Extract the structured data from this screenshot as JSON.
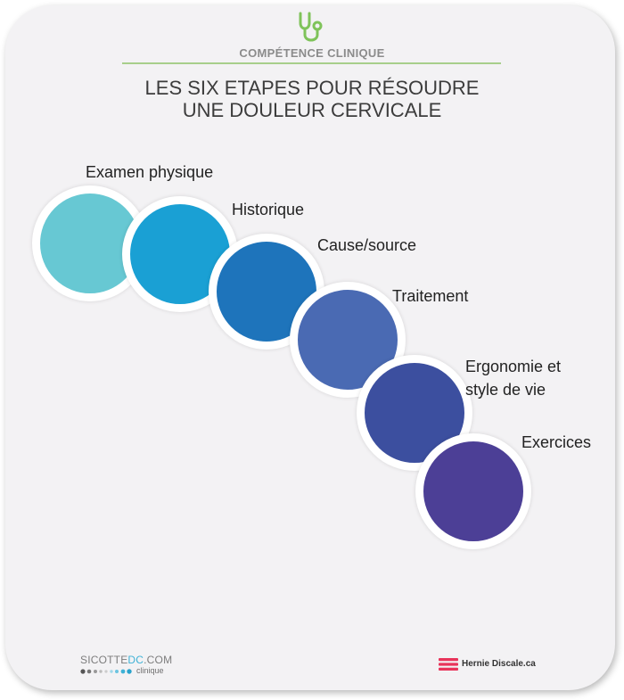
{
  "header": {
    "icon": "stethoscope-icon",
    "kicker": "COMPÉTENCE CLINIQUE",
    "title_line1": "LES SIX ETAPES POUR RÉSOUDRE",
    "title_line2": "UNE DOULEUR CERVICALE"
  },
  "steps": [
    {
      "label": "Examen physique",
      "color": "#67c8d3"
    },
    {
      "label": "Historique",
      "color": "#1aa0d4"
    },
    {
      "label": "Cause/source",
      "color": "#1e74bb"
    },
    {
      "label": "Traitement",
      "color": "#4a6ab3"
    },
    {
      "label": "Ergonomie et",
      "label2": "style de vie",
      "color": "#3c4f9f"
    },
    {
      "label": "Exercices",
      "color": "#4c3f96"
    }
  ],
  "footer": {
    "brand_main": "SICOTTE",
    "brand_dc": "DC",
    "brand_tld": ".COM",
    "brand_sub": "clinique",
    "partner": "Hernie Discale.ca",
    "accent": "#e8345a"
  }
}
